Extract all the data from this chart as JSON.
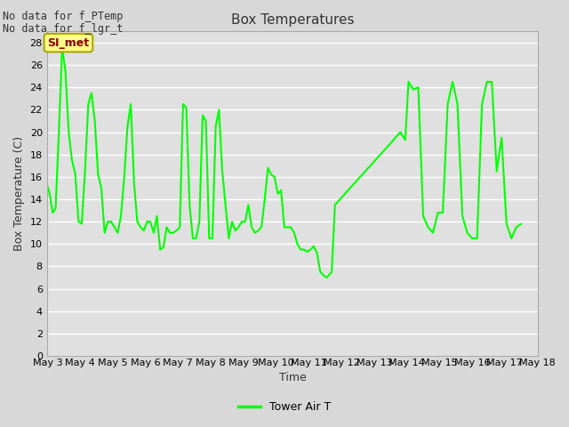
{
  "title": "Box Temperatures",
  "xlabel": "Time",
  "ylabel": "Box Temperature (C)",
  "text_no_data_1": "No data for f_PTemp",
  "text_no_data_2": "No data for f_lgr_t",
  "annotation_label": "SI_met",
  "legend_label": "Tower Air T",
  "line_color": "#00ff00",
  "fig_bg_color": "#d8d8d8",
  "plot_bg_color": "#e0e0e0",
  "grid_color": "#ffffff",
  "ylim": [
    0,
    29
  ],
  "yticks": [
    0,
    2,
    4,
    6,
    8,
    10,
    12,
    14,
    16,
    18,
    20,
    22,
    24,
    26,
    28
  ],
  "x_day_labels": [
    "May 3",
    "May 4",
    "May 5",
    "May 6",
    "May 7",
    "May 8",
    "May 9",
    "May 10",
    "May 11",
    "May 12",
    "May 13",
    "May 14",
    "May 15",
    "May 16",
    "May 17",
    "May 18"
  ],
  "x_day_nums": [
    3,
    4,
    5,
    6,
    7,
    8,
    9,
    10,
    11,
    12,
    13,
    14,
    15,
    16,
    17,
    18
  ],
  "tower_air_t_x": [
    3.0,
    3.04,
    3.08,
    3.12,
    3.16,
    3.25,
    3.35,
    3.45,
    3.55,
    3.65,
    3.75,
    3.85,
    3.95,
    4.05,
    4.15,
    4.25,
    4.35,
    4.45,
    4.55,
    4.65,
    4.75,
    4.85,
    4.95,
    5.05,
    5.15,
    5.25,
    5.35,
    5.45,
    5.55,
    5.65,
    5.75,
    5.85,
    5.95,
    6.05,
    6.15,
    6.25,
    6.35,
    6.45,
    6.55,
    6.65,
    6.75,
    6.85,
    6.95,
    7.05,
    7.15,
    7.25,
    7.35,
    7.45,
    7.55,
    7.65,
    7.75,
    7.85,
    7.95,
    8.05,
    8.15,
    8.25,
    8.35,
    8.45,
    8.55,
    8.65,
    8.75,
    8.85,
    8.95,
    9.05,
    9.15,
    9.25,
    9.35,
    9.45,
    9.55,
    9.65,
    9.75,
    9.85,
    9.95,
    10.05,
    10.15,
    10.25,
    10.35,
    10.45,
    10.55,
    10.65,
    10.75,
    10.85,
    10.95,
    11.05,
    11.15,
    11.25,
    11.35,
    11.45,
    11.55,
    11.7,
    11.8,
    13.5,
    13.65,
    13.8,
    13.95,
    14.05,
    14.2,
    14.35,
    14.5,
    14.65,
    14.8,
    14.95,
    15.1,
    15.25,
    15.4,
    15.55,
    15.7,
    15.85,
    16.0,
    16.15,
    16.3,
    16.45,
    16.6,
    16.75,
    16.9,
    17.05,
    17.2,
    17.35,
    17.5
  ],
  "tower_air_t_y": [
    15.2,
    14.8,
    14.3,
    13.5,
    12.8,
    13.2,
    20.0,
    27.5,
    25.5,
    20.0,
    17.5,
    16.3,
    12.0,
    11.8,
    16.5,
    22.5,
    23.5,
    21.0,
    16.2,
    15.0,
    11.0,
    12.0,
    12.0,
    11.5,
    11.0,
    12.5,
    16.0,
    20.5,
    22.5,
    15.5,
    12.0,
    11.5,
    11.2,
    12.0,
    12.0,
    11.0,
    12.5,
    9.5,
    9.7,
    11.5,
    11.0,
    11.0,
    11.2,
    11.5,
    22.5,
    22.2,
    13.5,
    10.5,
    10.5,
    12.0,
    21.5,
    21.0,
    10.5,
    10.5,
    20.5,
    22.0,
    16.5,
    13.5,
    10.5,
    12.0,
    11.2,
    11.5,
    12.0,
    12.0,
    13.5,
    11.5,
    11.0,
    11.2,
    11.5,
    14.0,
    16.8,
    16.2,
    16.0,
    14.5,
    14.8,
    11.5,
    11.5,
    11.5,
    11.0,
    10.0,
    9.5,
    9.5,
    9.3,
    9.5,
    9.8,
    9.2,
    7.5,
    7.2,
    7.0,
    7.5,
    13.5,
    19.0,
    19.5,
    20.0,
    19.3,
    24.5,
    23.8,
    24.0,
    12.5,
    11.5,
    11.0,
    12.8,
    12.8,
    22.5,
    24.5,
    22.5,
    12.5,
    11.0,
    10.5,
    10.5,
    22.5,
    24.5,
    24.5,
    16.5,
    19.5,
    11.8,
    10.5,
    11.5,
    11.8
  ]
}
